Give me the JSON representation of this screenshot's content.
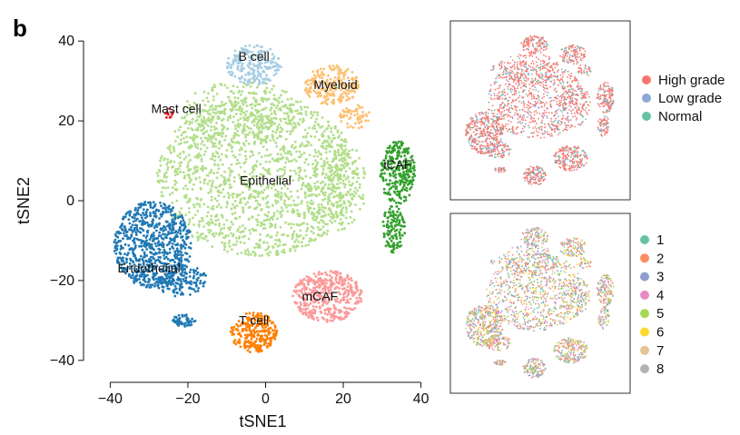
{
  "panel_letter": "b",
  "chart_data": [
    {
      "type": "scatter",
      "xlabel": "tSNE1",
      "ylabel": "tSNE2",
      "xlim": [
        -45,
        45
      ],
      "ylim": [
        -43,
        43
      ],
      "xticks": [
        -40,
        -20,
        0,
        20,
        40
      ],
      "yticks": [
        40,
        20,
        0,
        -20,
        -40
      ],
      "xtick_labels": [
        "−40",
        "−20",
        "0",
        "20",
        "40"
      ],
      "ytick_labels": [
        "40",
        "20",
        "0",
        "−20",
        "−40"
      ],
      "grid": false,
      "clusters": [
        {
          "name": "Epithelial",
          "color": "#b2de8a",
          "label_x": 0,
          "label_y": 4,
          "blobs": [
            {
              "cx": -2,
              "cy": 6,
              "rx": 26,
              "ry": 20,
              "n": 1500
            },
            {
              "cx": -6,
              "cy": 22,
              "rx": 16,
              "ry": 8,
              "n": 300
            },
            {
              "cx": 18,
              "cy": 4,
              "rx": 8,
              "ry": 12,
              "n": 200
            }
          ]
        },
        {
          "name": "Endothelial",
          "color": "#1f78b4",
          "label_x": -30,
          "label_y": -18,
          "label_side": "end",
          "blobs": [
            {
              "cx": -29,
              "cy": -11,
              "rx": 10,
              "ry": 11,
              "n": 700
            },
            {
              "cx": -22,
              "cy": -20,
              "rx": 7,
              "ry": 4,
              "n": 160
            },
            {
              "cx": -21,
              "cy": -30,
              "rx": 3,
              "ry": 1.5,
              "n": 50
            }
          ]
        },
        {
          "name": "iCAF",
          "color": "#33a02c",
          "label_x": 34,
          "label_y": 8,
          "blobs": [
            {
              "cx": 34,
              "cy": 7,
              "rx": 4.5,
              "ry": 8,
              "n": 260
            },
            {
              "cx": 33,
              "cy": -7,
              "rx": 3,
              "ry": 6,
              "n": 120
            }
          ]
        },
        {
          "name": "mCAF",
          "color": "#fb9a99",
          "label_x": 14,
          "label_y": -25,
          "blobs": [
            {
              "cx": 16,
              "cy": -24,
              "rx": 9,
              "ry": 6.5,
              "n": 420
            }
          ]
        },
        {
          "name": "B cell",
          "color": "#a6cee3",
          "label_x": -3,
          "label_y": 35,
          "blobs": [
            {
              "cx": -3,
              "cy": 34,
              "rx": 7,
              "ry": 5,
              "n": 220
            }
          ]
        },
        {
          "name": "Myeloid",
          "color": "#fdbf6f",
          "label_x": 18,
          "label_y": 28,
          "blobs": [
            {
              "cx": 17,
              "cy": 29,
              "rx": 7,
              "ry": 5,
              "n": 220
            },
            {
              "cx": 23,
              "cy": 21,
              "rx": 4,
              "ry": 3,
              "n": 60
            }
          ]
        },
        {
          "name": "T cell",
          "color": "#ff7f00",
          "label_x": -3,
          "label_y": -31,
          "blobs": [
            {
              "cx": -3,
              "cy": -33,
              "rx": 6,
              "ry": 5,
              "n": 260
            }
          ]
        },
        {
          "name": "Mast cell",
          "color": "#e31a1c",
          "label_x": -23,
          "label_y": 22,
          "label_side": "end",
          "blobs": [
            {
              "cx": -25,
              "cy": 22,
              "rx": 1.2,
              "ry": 1.5,
              "n": 12
            }
          ]
        }
      ]
    },
    {
      "type": "scatter",
      "legend": {
        "placement": "right",
        "entries": [
          "High grade",
          "Low grade",
          "Normal"
        ]
      },
      "colors": [
        "#f8766d",
        "#8fa8d6",
        "#66c2a5"
      ]
    },
    {
      "type": "scatter",
      "legend": {
        "placement": "right",
        "entries": [
          "1",
          "2",
          "3",
          "4",
          "5",
          "6",
          "7",
          "8"
        ]
      },
      "colors": [
        "#66c2a5",
        "#fc8d62",
        "#8da0cb",
        "#e78ac3",
        "#a6d854",
        "#ffd92f",
        "#e5c494",
        "#b3b3b3"
      ]
    }
  ]
}
